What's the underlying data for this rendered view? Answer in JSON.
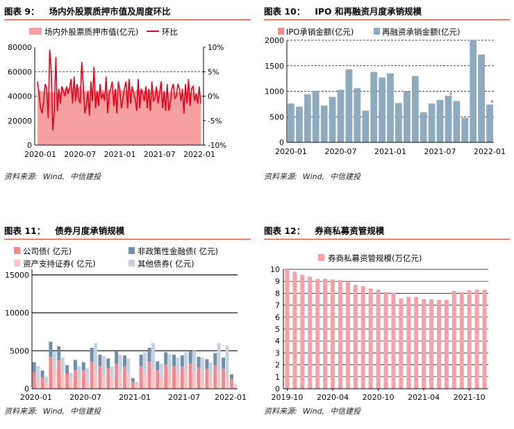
{
  "panels": {
    "p9": {
      "num": "图表 9：",
      "title": "场内外股票质押市值及周度环比",
      "source": [
        "资料来源:",
        "Wind,",
        "中信建投"
      ]
    },
    "p10": {
      "num": "图表 10：",
      "title": "IPO 和再融资月度承销规模",
      "source": [
        "资料来源:",
        "Wind,",
        "中信建投"
      ]
    },
    "p11": {
      "num": "图表 11：",
      "title": "债券月度承销规模",
      "source": [
        "资料来源:",
        "Wind,",
        "中信建投"
      ]
    },
    "p12": {
      "num": "图表 12：",
      "title": "券商私募资管规模",
      "source": [
        "资料来源:",
        "Wind,",
        "中信建投"
      ]
    }
  },
  "colors": {
    "pink_area": "#f4a0a0",
    "red_line": "#e0001b",
    "blue_bar": "#8eaabf",
    "ipo_bar": "#f08a8f",
    "gov_bond": "#6f90aa",
    "abs": "#f7c6c8",
    "other_bond": "#c4d3df",
    "pm_bar": "#f2a2a8",
    "title_rule": "#c0392b"
  },
  "chart_data": [
    {
      "id": "chart9",
      "type": "area",
      "title": "场内外股票质押市值及周度环比",
      "x_ticks": [
        "2020-01",
        "2020-07",
        "2021-01",
        "2021-07",
        "2022-01"
      ],
      "y_left": {
        "ticks": [
          "0",
          "20000",
          "40000",
          "60000",
          "80000"
        ],
        "lim": [
          0,
          80000
        ]
      },
      "y_right": {
        "ticks": [
          "-10%",
          "-5%",
          "0%",
          "5%",
          "10%"
        ],
        "lim": [
          -10,
          10
        ]
      },
      "grid": "dashed at 40000 and 60000",
      "series": [
        {
          "name": "场内外股票质押市值(亿元)",
          "kind": "area",
          "axis": "left",
          "values": [
            46000,
            44000,
            45000,
            43500,
            44500,
            43000,
            44000,
            42500,
            44000,
            42000,
            44000,
            42500,
            43500,
            42000,
            44500,
            43000,
            45000,
            44000,
            46000,
            45000,
            47000,
            46000,
            47500,
            46500,
            48000,
            47000,
            48500,
            47000,
            49000,
            46000,
            44000,
            45000,
            43000,
            45500,
            44000,
            46000,
            44500,
            45500,
            44000,
            45000,
            43500,
            45000,
            44000,
            45500,
            43500,
            45000,
            44000,
            46000,
            44500,
            45500,
            44000,
            46000,
            44500,
            45000,
            44000,
            45500,
            44000,
            45000,
            44500,
            45000,
            43500,
            45500,
            44000,
            45000,
            44000,
            45500,
            44000,
            45000,
            43500,
            45000,
            44000,
            45500,
            44500,
            45000,
            44000,
            45500,
            44000,
            45000,
            44000,
            45000,
            43500,
            44500,
            43000,
            44500,
            43000,
            44000,
            42500,
            44500,
            43000,
            44000,
            42500,
            44000,
            43000,
            44000,
            42000,
            43500,
            42000,
            44000,
            42500,
            43500,
            42000,
            43500,
            42500,
            43500,
            41500,
            43000,
            41000,
            40500
          ]
        },
        {
          "name": "环比",
          "kind": "line",
          "axis": "right",
          "values": [
            3.0,
            0.5,
            -2.5,
            -3.5,
            -1.0,
            2.5,
            1.5,
            -4.5,
            9.5,
            5.0,
            -7.0,
            -3.0,
            8.0,
            -3.0,
            1.5,
            -1.5,
            2.0,
            1.0,
            0.0,
            2.0,
            0.5,
            1.5,
            3.5,
            -1.5,
            4.0,
            -1.0,
            2.5,
            -0.5,
            -1.5,
            7.0,
            2.0,
            -3.5,
            -2.0,
            1.0,
            -4.0,
            3.0,
            -1.0,
            6.0,
            -2.5,
            1.0,
            -2.0,
            2.5,
            -0.5,
            0.5,
            -1.0,
            4.0,
            -3.5,
            0.5,
            1.5,
            3.0,
            -2.0,
            1.5,
            -3.5,
            3.0,
            1.0,
            -2.5,
            -0.5,
            1.5,
            3.0,
            -2.5,
            3.5,
            -1.5,
            2.0,
            0.5,
            -0.5,
            -3.0,
            3.5,
            -2.5,
            1.5,
            0.5,
            -1.0,
            2.0,
            -2.5,
            1.5,
            -3.0,
            3.0,
            -1.0,
            -0.5,
            2.0,
            -1.5,
            0.5,
            3.0,
            -2.5,
            1.0,
            -3.0,
            2.5,
            -3.0,
            -1.5,
            1.5,
            2.5,
            -0.5,
            0.0,
            2.5,
            1.5,
            -1.0,
            1.5,
            -3.5,
            2.5,
            -1.5,
            3.5,
            -2.0,
            1.5,
            2.0,
            -1.0,
            0.5,
            -1.5,
            2.0,
            -1.5
          ]
        }
      ]
    },
    {
      "id": "chart10",
      "type": "bar",
      "title": "IPO 和再融资月度承销规模",
      "categories": [
        "2020-01",
        "2020-02",
        "2020-03",
        "2020-04",
        "2020-05",
        "2020-06",
        "2020-07",
        "2020-08",
        "2020-09",
        "2020-10",
        "2020-11",
        "2020-12",
        "2021-01",
        "2021-02",
        "2021-03",
        "2021-04",
        "2021-05",
        "2021-06",
        "2021-07",
        "2021-08",
        "2021-09",
        "2021-10",
        "2021-11",
        "2021-12",
        "2022-01"
      ],
      "x_ticks": [
        "2020-01",
        "2020-07",
        "2021-01",
        "2021-07",
        "2022-01"
      ],
      "y_ticks": [
        "0",
        "500",
        "1000",
        "1500",
        "2000"
      ],
      "ylim": [
        0,
        2000
      ],
      "grid": "dashed at 500, 1000, 1500, 2000",
      "series": [
        {
          "name": "IPO承销金额(亿元)",
          "values": [
            0,
            0,
            0,
            0,
            0,
            0,
            0,
            0,
            0,
            0,
            0,
            0,
            0,
            0,
            0,
            0,
            0,
            0,
            0,
            980,
            0,
            0,
            0,
            0,
            830
          ]
        },
        {
          "name": "再融资承销金额(亿元)",
          "values": [
            760,
            700,
            940,
            1010,
            720,
            890,
            1030,
            1430,
            1060,
            620,
            1380,
            1270,
            1350,
            770,
            1000,
            1300,
            590,
            760,
            830,
            910,
            810,
            480,
            2000,
            1720,
            740
          ]
        }
      ]
    },
    {
      "id": "chart11",
      "type": "bar",
      "stacked": true,
      "title": "债券月度承销规模",
      "categories": [
        "2020-01",
        "2020-02",
        "2020-03",
        "2020-04",
        "2020-05",
        "2020-06",
        "2020-07",
        "2020-08",
        "2020-09",
        "2020-10",
        "2020-11",
        "2020-12",
        "2021-01",
        "2021-02",
        "2021-03",
        "2021-04",
        "2021-05",
        "2021-06",
        "2021-07",
        "2021-08",
        "2021-09",
        "2021-10",
        "2021-11",
        "2021-12",
        "2022-01"
      ],
      "x_ticks": [
        "2020-01",
        "2020-07",
        "2021-01",
        "2021-07",
        "2022-01"
      ],
      "y_ticks": [
        "0",
        "5000",
        "10000",
        "15000"
      ],
      "ylim": [
        0,
        15000
      ],
      "grid": "solid at 5000, 10000, 15000",
      "series": [
        {
          "name": "公司债( 亿元)",
          "values": [
            2200,
            1500,
            4200,
            3800,
            2000,
            2500,
            2400,
            3600,
            3000,
            2700,
            3300,
            2900,
            900,
            3000,
            3600,
            2400,
            3200,
            3000,
            2900,
            3300,
            2800,
            2600,
            3100,
            2700,
            1300
          ]
        },
        {
          "name": "非政策性金融债( 亿元)",
          "values": [
            1300,
            900,
            2000,
            1800,
            1100,
            1300,
            1100,
            1800,
            1500,
            1300,
            1600,
            1500,
            500,
            1500,
            1800,
            1200,
            1600,
            1500,
            1500,
            1600,
            1400,
            1300,
            1600,
            1400,
            600
          ]
        },
        {
          "name": "资产支持证券( 亿元)",
          "values": [
            1200,
            700,
            2500,
            2100,
            1000,
            1400,
            1200,
            2300,
            2000,
            1500,
            2200,
            2000,
            600,
            2100,
            2700,
            1600,
            2200,
            2000,
            2100,
            2300,
            1900,
            1700,
            2300,
            1900,
            400
          ]
        },
        {
          "name": "其他债券( 亿元)",
          "values": [
            1800,
            900,
            2400,
            2000,
            1100,
            1600,
            1500,
            3700,
            2300,
            1400,
            2300,
            2000,
            300,
            2700,
            3300,
            1700,
            2400,
            2100,
            2700,
            2700,
            2200,
            1800,
            3700,
            3800,
            200
          ]
        }
      ]
    },
    {
      "id": "chart12",
      "type": "bar",
      "title": "券商私募资管规模",
      "categories": [
        "2019-10",
        "2019-11",
        "2019-12",
        "2020-01",
        "2020-02",
        "2020-03",
        "2020-04",
        "2020-05",
        "2020-06",
        "2020-07",
        "2020-08",
        "2020-09",
        "2020-10",
        "2020-11",
        "2020-12",
        "2021-01",
        "2021-02",
        "2021-03",
        "2021-04",
        "2021-05",
        "2021-06",
        "2021-07",
        "2021-08",
        "2021-09",
        "2021-10",
        "2021-11",
        "2021-12"
      ],
      "x_ticks": [
        "2019-10",
        "2020-04",
        "2020-10",
        "2021-04",
        "2021-10"
      ],
      "y_ticks": [
        "0",
        "1",
        "2",
        "3",
        "4",
        "5",
        "6",
        "7",
        "8",
        "9",
        "10"
      ],
      "ylim": [
        0,
        10
      ],
      "grid": "solid horizontal at each integer",
      "series": [
        {
          "name": "券商私募资管规模(万亿元)",
          "values": [
            10.0,
            9.8,
            9.55,
            9.4,
            9.2,
            9.2,
            9.15,
            9.1,
            9.0,
            8.7,
            8.6,
            8.4,
            8.3,
            8.1,
            8.05,
            7.55,
            7.7,
            7.7,
            7.5,
            7.5,
            7.45,
            7.45,
            8.2,
            8.1,
            8.25,
            8.3,
            8.3
          ]
        }
      ]
    }
  ]
}
